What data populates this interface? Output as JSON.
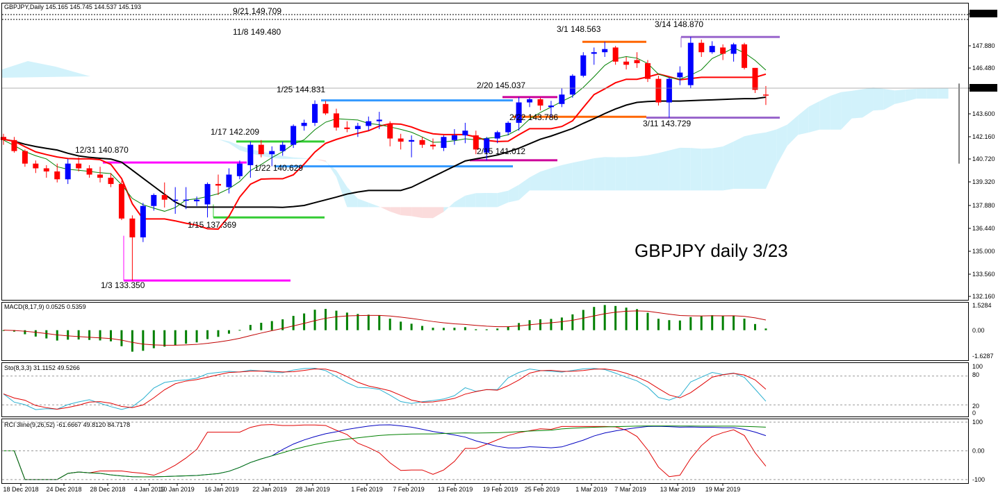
{
  "header": {
    "symbol_info": "GBPJPY,Daily  145.165 145.745 144.537 145.193",
    "macd_label": "MACD(8,17,9) 0.0525 0.5359",
    "sto_label": "Sto(8,3,3) 31.1152 49.5266",
    "rci_label": "RCI 3line(9,26,52) -61.6667 49.8120 84.7178"
  },
  "big_label": "GBPJPY daily 3/23",
  "colors": {
    "bull": "#0000ff",
    "bear": "#ff0000",
    "cloud_bull": "#d2f2fb",
    "cloud_bear": "#fbdcdc",
    "tenkan": "#ff0000",
    "kijun": "#000000",
    "chikou": "#008000",
    "macd_hist": "#008000",
    "macd_signal": "#c00000",
    "sto_k": "#2ab0d0",
    "sto_d": "#e00000",
    "rci_short": "#e00000",
    "rci_mid": "#0000c0",
    "rci_long": "#008000"
  },
  "annotations": [
    {
      "text": "9/21 149.709"
    },
    {
      "text": "11/8 149.480"
    },
    {
      "text": "3/1 148.563"
    },
    {
      "text": "3/14 148.870"
    },
    {
      "text": "1/25 144.831"
    },
    {
      "text": "2/20 145.037"
    },
    {
      "text": "2/22 143.786"
    },
    {
      "text": "3/11 143.729"
    },
    {
      "text": "1/17 142.209"
    },
    {
      "text": "12/31 140.870"
    },
    {
      "text": "1/22 140.629"
    },
    {
      "text": "2/15 141.012"
    },
    {
      "text": "1/15 137.369"
    },
    {
      "text": "1/3 133.350"
    }
  ],
  "chart_data": [
    {
      "type": "candlestick",
      "title": "GBPJPY,Daily",
      "price_ticks": [
        "149.709",
        "147.880",
        "146.480",
        "145.193",
        "143.600",
        "142.160",
        "140.720",
        "139.320",
        "137.880",
        "136.440",
        "135.000",
        "133.560",
        "132.160"
      ],
      "x_tick_labels": [
        "18 Dec 2018",
        "24 Dec 2018",
        "28 Dec 2018",
        "4 Jan 2019",
        "10 Jan 2019",
        "16 Jan 2019",
        "22 Jan 2019",
        "28 Jan 2019",
        "1 Feb 2019",
        "7 Feb 2019",
        "13 Feb 2019",
        "19 Feb 2019",
        "25 Feb 2019",
        "1 Mar 2019",
        "7 Mar 2019",
        "13 Mar 2019",
        "19 Mar 2019"
      ],
      "ylim": [
        132.16,
        149.9
      ],
      "last_price": 145.193,
      "ohlc": [
        [
          142.5,
          142.7,
          142.0,
          142.3
        ],
        [
          142.3,
          142.5,
          141.5,
          141.6
        ],
        [
          141.6,
          141.7,
          140.6,
          140.8
        ],
        [
          140.8,
          141.0,
          140.2,
          140.5
        ],
        [
          140.5,
          140.7,
          139.9,
          140.3
        ],
        [
          140.3,
          140.8,
          139.6,
          139.8
        ],
        [
          139.8,
          141.1,
          139.5,
          140.8
        ],
        [
          140.8,
          141.2,
          140.3,
          140.5
        ],
        [
          140.5,
          140.7,
          139.9,
          140.1
        ],
        [
          140.1,
          140.6,
          139.6,
          139.9
        ],
        [
          139.9,
          140.2,
          139.3,
          139.5
        ],
        [
          139.5,
          139.7,
          137.2,
          137.3
        ],
        [
          137.3,
          137.5,
          133.35,
          136.1
        ],
        [
          136.1,
          138.3,
          135.8,
          138.1
        ],
        [
          138.1,
          138.9,
          137.8,
          138.8
        ],
        [
          138.8,
          139.6,
          138.0,
          138.5
        ],
        [
          138.5,
          139.3,
          137.6,
          138.5
        ],
        [
          138.5,
          139.3,
          137.9,
          138.5
        ],
        [
          138.4,
          138.7,
          138.1,
          138.5
        ],
        [
          138.2,
          139.6,
          137.369,
          139.5
        ],
        [
          139.5,
          140.1,
          138.8,
          139.4
        ],
        [
          139.3,
          140.5,
          138.9,
          140.1
        ],
        [
          140.0,
          141.0,
          139.8,
          140.8
        ],
        [
          140.7,
          142.209,
          139.9,
          142.0
        ],
        [
          142.0,
          142.3,
          141.2,
          141.4
        ],
        [
          141.4,
          141.9,
          140.629,
          141.6
        ],
        [
          141.6,
          142.2,
          141.3,
          142.0
        ],
        [
          142.0,
          143.3,
          141.8,
          143.2
        ],
        [
          143.2,
          143.6,
          142.9,
          143.4
        ],
        [
          143.4,
          144.831,
          143.2,
          144.6
        ],
        [
          144.6,
          144.8,
          143.9,
          144.0
        ],
        [
          144.0,
          144.3,
          142.9,
          143.1
        ],
        [
          143.1,
          143.5,
          142.8,
          143.0
        ],
        [
          143.0,
          143.4,
          142.5,
          143.2
        ],
        [
          143.2,
          143.8,
          142.9,
          143.5
        ],
        [
          143.5,
          144.1,
          143.0,
          143.6
        ],
        [
          143.3,
          143.5,
          141.9,
          142.4
        ],
        [
          142.4,
          142.7,
          141.7,
          142.2
        ],
        [
          142.2,
          142.6,
          141.2,
          142.3
        ],
        [
          142.3,
          142.5,
          141.8,
          142.0
        ],
        [
          142.0,
          142.4,
          141.7,
          141.9
        ],
        [
          141.8,
          142.6,
          141.6,
          142.5
        ],
        [
          142.3,
          143.0,
          142.0,
          142.6
        ],
        [
          142.6,
          143.4,
          142.1,
          142.9
        ],
        [
          142.6,
          142.9,
          141.4,
          141.7
        ],
        [
          141.5,
          142.5,
          141.012,
          142.4
        ],
        [
          142.4,
          142.9,
          142.1,
          142.8
        ],
        [
          142.8,
          143.5,
          142.6,
          143.4
        ],
        [
          143.4,
          145.037,
          142.9,
          144.7
        ],
        [
          144.7,
          145.0,
          144.4,
          144.9
        ],
        [
          144.9,
          145.0,
          144.2,
          144.5
        ],
        [
          144.4,
          144.8,
          143.786,
          144.5
        ],
        [
          144.6,
          145.6,
          144.4,
          145.2
        ],
        [
          145.2,
          146.5,
          145.0,
          146.4
        ],
        [
          146.4,
          147.9,
          146.3,
          147.7
        ],
        [
          147.8,
          148.2,
          147.1,
          147.9
        ],
        [
          147.9,
          148.563,
          147.6,
          148.1
        ],
        [
          148.2,
          148.3,
          147.1,
          147.3
        ],
        [
          147.3,
          147.6,
          146.8,
          147.1
        ],
        [
          147.4,
          147.9,
          146.9,
          147.2
        ],
        [
          147.2,
          147.4,
          146.0,
          146.2
        ],
        [
          146.2,
          146.4,
          144.5,
          144.7
        ],
        [
          144.7,
          146.3,
          143.729,
          146.2
        ],
        [
          146.3,
          147.0,
          145.8,
          146.6
        ],
        [
          145.8,
          148.87,
          145.6,
          148.5
        ],
        [
          148.5,
          148.7,
          147.6,
          147.9
        ],
        [
          147.9,
          148.6,
          147.8,
          148.3
        ],
        [
          148.2,
          148.4,
          147.4,
          147.8
        ],
        [
          147.8,
          148.5,
          147.3,
          148.4
        ],
        [
          148.4,
          148.5,
          146.8,
          146.9
        ],
        [
          146.9,
          146.9,
          145.3,
          145.5
        ],
        [
          145.2,
          145.745,
          144.537,
          145.193
        ]
      ]
    },
    {
      "type": "bar",
      "title": "MACD(8,17,9)",
      "y_ticks": [
        "1.5284",
        "0.00",
        "-1.6287"
      ],
      "ylim": [
        -1.75,
        1.6
      ],
      "macd": 0.0525,
      "signal": 0.5359
    },
    {
      "type": "line",
      "title": "Sto(8,3,3)",
      "y_ticks": [
        "100",
        "80",
        "20",
        "0"
      ],
      "ylim": [
        0,
        100
      ],
      "k": 31.1152,
      "d": 49.5266
    },
    {
      "type": "line",
      "title": "RCI 3line(9,26,52)",
      "y_ticks": [
        "100",
        "0.00",
        "-100"
      ],
      "ylim": [
        -110,
        110
      ],
      "short": -61.6667,
      "mid": 49.812,
      "long": 84.7178
    }
  ]
}
